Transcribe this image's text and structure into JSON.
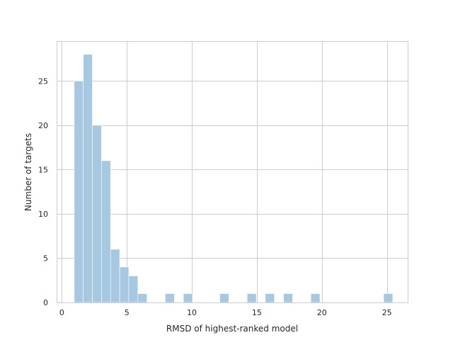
{
  "chart_data": {
    "type": "bar",
    "title": "",
    "xlabel": "RMSD of highest-ranked model",
    "ylabel": "Number of targets",
    "xlim": [
      -0.4,
      26.6
    ],
    "ylim": [
      0,
      29.5
    ],
    "xticks": [
      0,
      5,
      10,
      15,
      20,
      25
    ],
    "yticks": [
      0,
      5,
      10,
      15,
      20,
      25
    ],
    "grid": true,
    "bar_color": "#a6c8e0",
    "bins": [
      {
        "x0": 0.95,
        "x1": 1.65,
        "value": 25
      },
      {
        "x0": 1.65,
        "x1": 2.35,
        "value": 28
      },
      {
        "x0": 2.35,
        "x1": 3.05,
        "value": 20
      },
      {
        "x0": 3.05,
        "x1": 3.75,
        "value": 16
      },
      {
        "x0": 3.75,
        "x1": 4.45,
        "value": 6
      },
      {
        "x0": 4.45,
        "x1": 5.15,
        "value": 4
      },
      {
        "x0": 5.15,
        "x1": 5.85,
        "value": 3
      },
      {
        "x0": 5.85,
        "x1": 6.55,
        "value": 1
      },
      {
        "x0": 7.95,
        "x1": 8.65,
        "value": 1
      },
      {
        "x0": 9.35,
        "x1": 10.05,
        "value": 1
      },
      {
        "x0": 12.15,
        "x1": 12.85,
        "value": 1
      },
      {
        "x0": 14.25,
        "x1": 14.95,
        "value": 1
      },
      {
        "x0": 15.65,
        "x1": 16.35,
        "value": 1
      },
      {
        "x0": 17.05,
        "x1": 17.75,
        "value": 1
      },
      {
        "x0": 19.15,
        "x1": 19.85,
        "value": 1
      },
      {
        "x0": 24.75,
        "x1": 25.45,
        "value": 1
      }
    ]
  }
}
